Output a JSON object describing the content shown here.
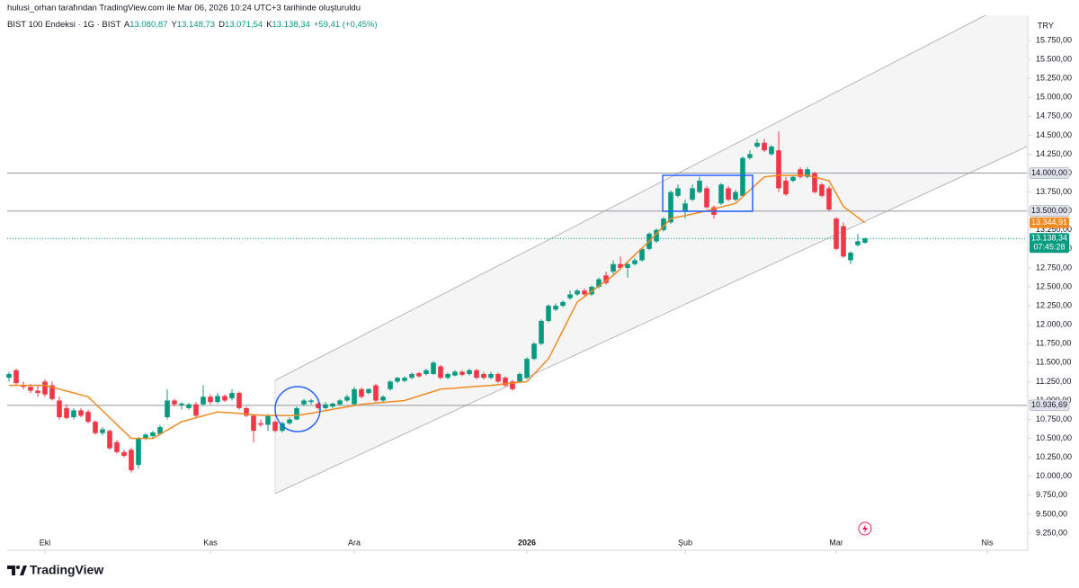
{
  "header": {
    "author_line": "hulusi_orhan tarafından TradingView.com ile Mar 06, 2026 10:24 UTC+3 tarihinde oluşturuldu",
    "symbol": "BIST 100 Endeksi · 1G · BIST",
    "ohlc": [
      {
        "label": "A",
        "value": "13.080,87"
      },
      {
        "label": "Y",
        "value": "13.148,73"
      },
      {
        "label": "D",
        "value": "13.071,54"
      },
      {
        "label": "K",
        "value": "13.138,34"
      }
    ],
    "change": "+59,41 (+0,45%)"
  },
  "chart_data": {
    "type": "candlestick",
    "currency": "TRY",
    "up_color": "#089981",
    "down_color": "#f23645",
    "candles": [
      [
        11300,
        11380,
        11250,
        11350
      ],
      [
        11400,
        11420,
        11200,
        11230
      ],
      [
        11200,
        11250,
        11150,
        11180
      ],
      [
        11180,
        11220,
        11100,
        11130
      ],
      [
        11130,
        11200,
        11050,
        11100
      ],
      [
        11250,
        11280,
        11050,
        11080
      ],
      [
        11200,
        11250,
        11000,
        11020
      ],
      [
        11000,
        11050,
        10750,
        10780
      ],
      [
        10900,
        10950,
        10750,
        10770
      ],
      [
        10780,
        10900,
        10750,
        10870
      ],
      [
        10870,
        10900,
        10780,
        10800
      ],
      [
        10850,
        10880,
        10700,
        10720
      ],
      [
        10720,
        10740,
        10550,
        10570
      ],
      [
        10570,
        10650,
        10540,
        10620
      ],
      [
        10600,
        10620,
        10350,
        10370
      ],
      [
        10450,
        10480,
        10300,
        10320
      ],
      [
        10320,
        10350,
        10250,
        10270
      ],
      [
        10350,
        10380,
        10050,
        10080
      ],
      [
        10150,
        10520,
        10100,
        10500
      ],
      [
        10500,
        10570,
        10480,
        10550
      ],
      [
        10530,
        10600,
        10500,
        10580
      ],
      [
        10560,
        10680,
        10540,
        10650
      ],
      [
        10780,
        11150,
        10750,
        11000
      ],
      [
        11000,
        11020,
        10920,
        10950
      ],
      [
        10940,
        10980,
        10880,
        10960
      ],
      [
        10900,
        10970,
        10880,
        10950
      ],
      [
        10950,
        10980,
        10780,
        10800
      ],
      [
        10950,
        11200,
        10930,
        11050
      ],
      [
        11050,
        11080,
        10950,
        10980
      ],
      [
        10980,
        11100,
        10960,
        11060
      ],
      [
        11060,
        11080,
        10980,
        11000
      ],
      [
        11030,
        11150,
        11000,
        11100
      ],
      [
        11100,
        11120,
        10880,
        10900
      ],
      [
        10900,
        10920,
        10780,
        10800
      ],
      [
        10800,
        10820,
        10450,
        10600
      ],
      [
        10700,
        10750,
        10650,
        10680
      ],
      [
        10680,
        10820,
        10600,
        10800
      ],
      [
        10720,
        10740,
        10580,
        10600
      ],
      [
        10600,
        10720,
        10580,
        10700
      ],
      [
        10700,
        10780,
        10680,
        10750
      ],
      [
        10750,
        10920,
        10740,
        10900
      ],
      [
        10950,
        11020,
        10930,
        11000
      ],
      [
        10980,
        11020,
        10950,
        11000
      ],
      [
        10960,
        10980,
        10880,
        10900
      ],
      [
        10900,
        10980,
        10880,
        10950
      ],
      [
        10920,
        10970,
        10900,
        10960
      ],
      [
        10950,
        11020,
        10930,
        11000
      ],
      [
        11000,
        11080,
        10980,
        11050
      ],
      [
        10950,
        11180,
        10930,
        11150
      ],
      [
        11150,
        11170,
        11030,
        11050
      ],
      [
        11100,
        11160,
        11080,
        11150
      ],
      [
        11200,
        11220,
        10980,
        11000
      ],
      [
        11000,
        11070,
        10980,
        11050
      ],
      [
        11150,
        11270,
        11130,
        11250
      ],
      [
        11250,
        11310,
        11230,
        11300
      ],
      [
        11260,
        11320,
        11240,
        11300
      ],
      [
        11300,
        11370,
        11280,
        11350
      ],
      [
        11360,
        11380,
        11300,
        11320
      ],
      [
        11350,
        11420,
        11330,
        11400
      ],
      [
        11350,
        11520,
        11340,
        11500
      ],
      [
        11450,
        11470,
        11280,
        11300
      ],
      [
        11300,
        11370,
        11280,
        11350
      ],
      [
        11330,
        11400,
        11320,
        11380
      ],
      [
        11380,
        11400,
        11320,
        11340
      ],
      [
        11350,
        11420,
        11330,
        11400
      ],
      [
        11400,
        11420,
        11280,
        11300
      ],
      [
        11350,
        11380,
        11280,
        11300
      ],
      [
        11300,
        11380,
        11280,
        11350
      ],
      [
        11350,
        11370,
        11230,
        11250
      ],
      [
        11300,
        11320,
        11180,
        11200
      ],
      [
        11250,
        11270,
        11130,
        11150
      ],
      [
        11250,
        11370,
        11230,
        11350
      ],
      [
        11300,
        11570,
        11280,
        11550
      ],
      [
        11550,
        11770,
        11530,
        11750
      ],
      [
        11750,
        12070,
        11730,
        12050
      ],
      [
        12050,
        12270,
        12030,
        12250
      ],
      [
        12200,
        12280,
        12180,
        12250
      ],
      [
        12250,
        12320,
        12230,
        12300
      ],
      [
        12350,
        12450,
        12330,
        12400
      ],
      [
        12400,
        12470,
        12380,
        12450
      ],
      [
        12450,
        12480,
        12380,
        12400
      ],
      [
        12400,
        12520,
        12380,
        12500
      ],
      [
        12500,
        12620,
        12480,
        12600
      ],
      [
        12650,
        12700,
        12530,
        12550
      ],
      [
        12700,
        12850,
        12650,
        12800
      ],
      [
        12800,
        12900,
        12730,
        12750
      ],
      [
        12750,
        12830,
        12620,
        12800
      ],
      [
        12800,
        12880,
        12780,
        12850
      ],
      [
        12850,
        13020,
        12830,
        13000
      ],
      [
        13000,
        13220,
        12980,
        13200
      ],
      [
        13100,
        13270,
        13080,
        13250
      ],
      [
        13250,
        13420,
        13230,
        13400
      ],
      [
        13350,
        13770,
        13330,
        13750
      ],
      [
        13700,
        13850,
        13680,
        13800
      ],
      [
        13500,
        13650,
        13400,
        13600
      ],
      [
        13650,
        13850,
        13630,
        13800
      ],
      [
        13750,
        13950,
        13730,
        13900
      ],
      [
        13800,
        13830,
        13530,
        13550
      ],
      [
        13550,
        13570,
        13400,
        13450
      ],
      [
        13600,
        13870,
        13580,
        13850
      ],
      [
        13800,
        13830,
        13630,
        13650
      ],
      [
        13650,
        13780,
        13630,
        13750
      ],
      [
        13700,
        14220,
        13680,
        14200
      ],
      [
        14200,
        14300,
        14180,
        14250
      ],
      [
        14350,
        14450,
        14330,
        14400
      ],
      [
        14400,
        14450,
        14280,
        14300
      ],
      [
        14250,
        14370,
        14230,
        14350
      ],
      [
        14300,
        14550,
        13750,
        13800
      ],
      [
        13900,
        13950,
        13700,
        13720
      ],
      [
        13900,
        13970,
        13880,
        13950
      ],
      [
        14050,
        14080,
        13930,
        13950
      ],
      [
        13950,
        14080,
        13930,
        14050
      ],
      [
        14000,
        14020,
        13730,
        13750
      ],
      [
        13850,
        13870,
        13680,
        13700
      ],
      [
        13800,
        13830,
        13500,
        13520
      ],
      [
        13400,
        13420,
        12980,
        13000
      ],
      [
        13300,
        13350,
        12880,
        12900
      ],
      [
        12850,
        12970,
        12800,
        12950
      ],
      [
        13050,
        13200,
        13030,
        13100
      ],
      [
        13080.87,
        13148.73,
        13071.54,
        13138.34
      ]
    ],
    "ma": {
      "color": "#f08a24",
      "last_label": "13.344,91",
      "values": [
        11200,
        11200,
        11200,
        11200,
        11200,
        11200,
        11175,
        11150,
        11125,
        11100,
        11075,
        11050,
        10958,
        10867,
        10775,
        10683,
        10592,
        10500,
        10500,
        10500,
        10500,
        10555,
        10610,
        10665,
        10720,
        10746,
        10772,
        10798,
        10824,
        10850,
        10843,
        10836,
        10829,
        10821,
        10814,
        10807,
        10800,
        10800,
        10800,
        10800,
        10800,
        10817,
        10833,
        10850,
        10867,
        10883,
        10900,
        10917,
        10933,
        10950,
        10958,
        10967,
        10975,
        10983,
        10992,
        11000,
        11030,
        11060,
        11090,
        11120,
        11150,
        11157,
        11164,
        11171,
        11179,
        11186,
        11193,
        11200,
        11210,
        11220,
        11230,
        11240,
        11250,
        11350,
        11450,
        11550,
        11738,
        11925,
        12113,
        12300,
        12370,
        12440,
        12510,
        12580,
        12650,
        12740,
        12830,
        12920,
        13010,
        13100,
        13200,
        13300,
        13400,
        13420,
        13440,
        13460,
        13480,
        13504,
        13528,
        13552,
        13576,
        13600,
        13688,
        13775,
        13863,
        13950,
        13960,
        13970,
        13970,
        13970,
        13970,
        13970,
        13947,
        13923,
        13900,
        13730,
        13560,
        13488,
        13416,
        13344.91
      ]
    },
    "levels": [
      {
        "value": 14000,
        "label": "14.000,00"
      },
      {
        "value": 13500,
        "label": "13.500,00"
      },
      {
        "value": 10936.69,
        "label": "10.936,69"
      }
    ],
    "last_price": {
      "value": 13138.34,
      "label": "13.138,34",
      "countdown": "07:45:28"
    },
    "xlim": [
      -0.25,
      141.5
    ],
    "xticks": [
      {
        "value": 5,
        "label": "Eki"
      },
      {
        "value": 28,
        "label": "Kas"
      },
      {
        "value": 48,
        "label": "Ara"
      },
      {
        "value": 72,
        "label": "2026"
      },
      {
        "value": 94,
        "label": "Şub"
      },
      {
        "value": 115,
        "label": "Mar"
      },
      {
        "value": 136,
        "label": "Nis"
      }
    ],
    "ylim": [
      9025,
      16082
    ],
    "yticks": [
      {
        "value": 15750,
        "label": "15.750,00"
      },
      {
        "value": 15500,
        "label": "15.500,00"
      },
      {
        "value": 15250,
        "label": "15.250,00"
      },
      {
        "value": 15000,
        "label": "15.000,00"
      },
      {
        "value": 14750,
        "label": "14.750,00"
      },
      {
        "value": 14500,
        "label": "14.500,00"
      },
      {
        "value": 14250,
        "label": "14.250,00"
      },
      {
        "value": 14000,
        "label": "14.000,00"
      },
      {
        "value": 13750,
        "label": "13.750,00"
      },
      {
        "value": 13500,
        "label": "13.500,00"
      },
      {
        "value": 13250,
        "label": "13.250,00"
      },
      {
        "value": 13000,
        "label": "13.000,00"
      },
      {
        "value": 12750,
        "label": "12.750,00"
      },
      {
        "value": 12500,
        "label": "12.500,00"
      },
      {
        "value": 12250,
        "label": "12.250,00"
      },
      {
        "value": 12000,
        "label": "12.000,00"
      },
      {
        "value": 11750,
        "label": "11.750,00"
      },
      {
        "value": 11500,
        "label": "11.500,00"
      },
      {
        "value": 11250,
        "label": "11.250,00"
      },
      {
        "value": 11000,
        "label": "11.000,00"
      },
      {
        "value": 10750,
        "label": "10.750,00"
      },
      {
        "value": 10500,
        "label": "10.500,00"
      },
      {
        "value": 10250,
        "label": "10.250,00"
      },
      {
        "value": 10000,
        "label": "10.000,00"
      },
      {
        "value": 9750,
        "label": "9.750,00"
      },
      {
        "value": 9500,
        "label": "9.500,00"
      },
      {
        "value": 9250,
        "label": "9.250,00"
      }
    ]
  },
  "footer": {
    "brand": "TradingView"
  }
}
